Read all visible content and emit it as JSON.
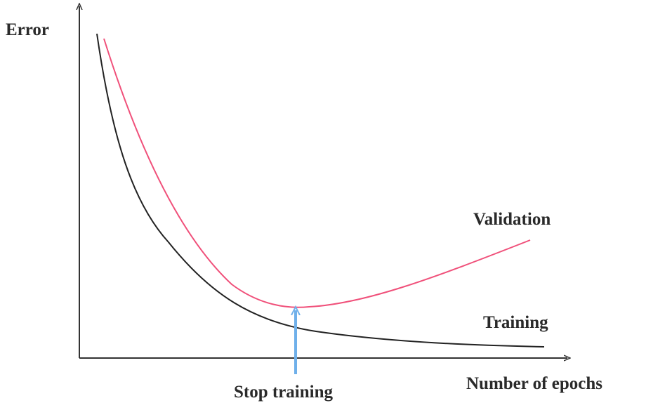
{
  "axes": {
    "y_label": "Error",
    "x_label": "Number of epochs"
  },
  "curves": {
    "validation": "Validation",
    "training": "Training"
  },
  "annotation": "Stop training"
}
